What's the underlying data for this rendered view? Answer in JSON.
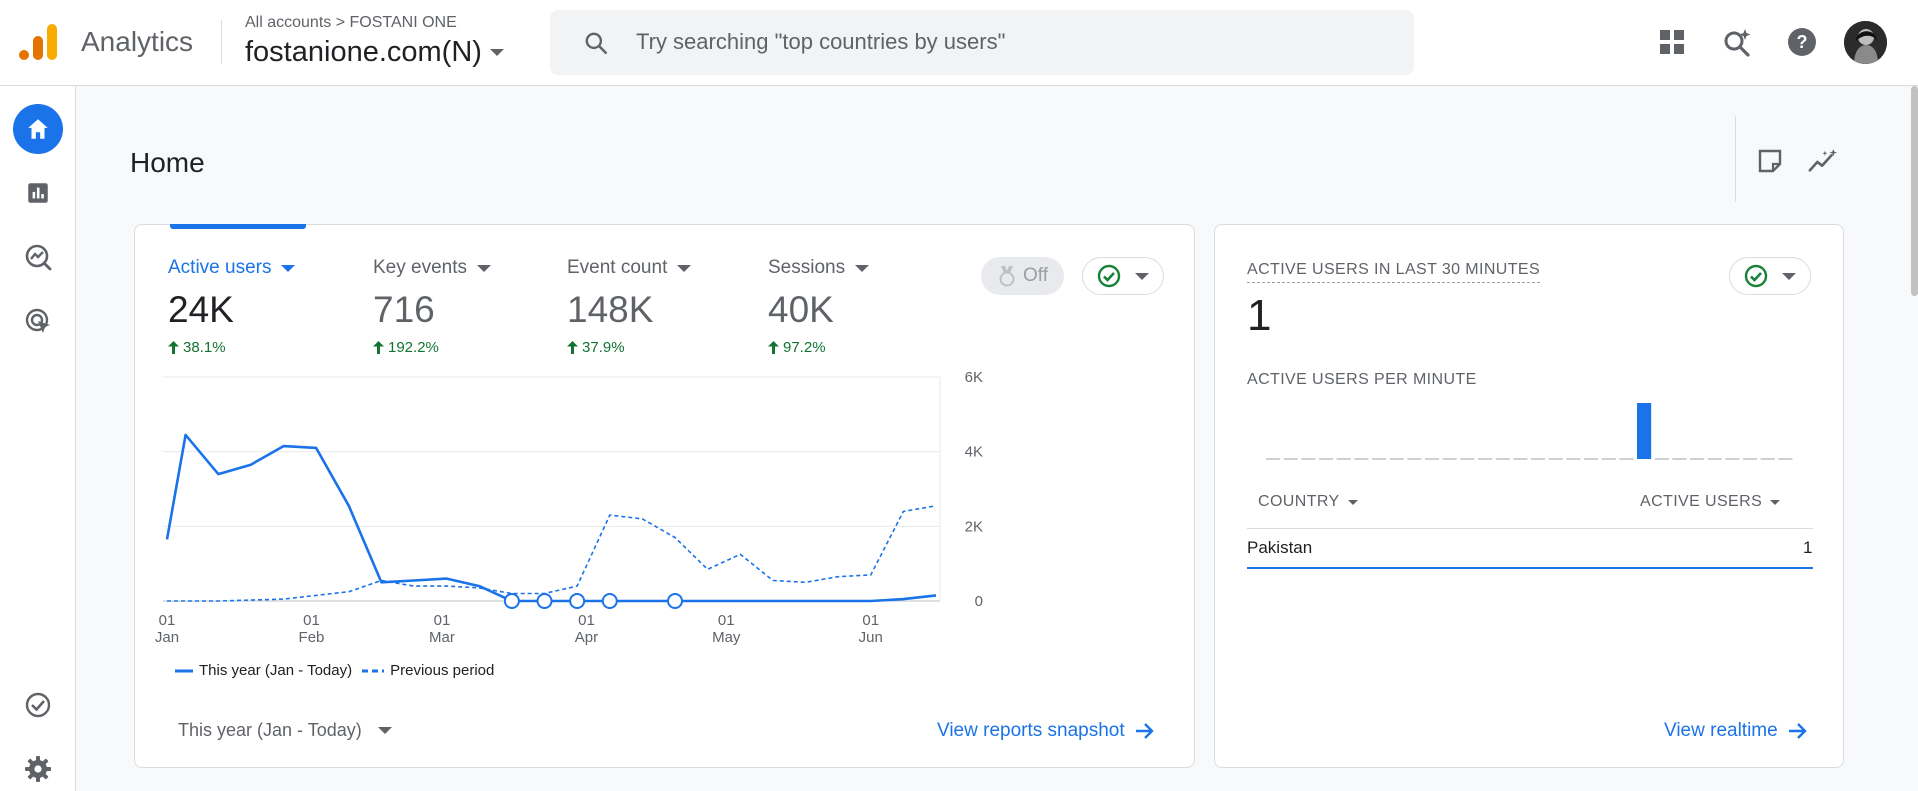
{
  "app": {
    "name": "Analytics"
  },
  "breadcrumb": {
    "all_accounts": "All accounts",
    "separator": ">",
    "account": "FOSTANI ONE"
  },
  "property": {
    "name": "fostanione.com(N)"
  },
  "search": {
    "placeholder": "Try searching \"top countries by users\""
  },
  "topbar_icons": [
    "apps-icon",
    "search-insights-icon",
    "help-icon",
    "account-avatar"
  ],
  "nav": {
    "items": [
      "home-icon",
      "reports-icon",
      "explore-icon",
      "advertising-icon"
    ],
    "bottom": [
      "admin-check-icon",
      "settings-icon"
    ]
  },
  "header": {
    "title": "Home"
  },
  "metrics": [
    {
      "label": "Active users",
      "value": "24K",
      "change": "38.1%"
    },
    {
      "label": "Key events",
      "value": "716",
      "change": "192.2%"
    },
    {
      "label": "Event count",
      "value": "148K",
      "change": "37.9%"
    },
    {
      "label": "Sessions",
      "value": "40K",
      "change": "97.2%"
    }
  ],
  "insights_toggle": {
    "label": "Off"
  },
  "chart_data": {
    "type": "line",
    "title": "",
    "x_tick_labels": [
      {
        "day": "01",
        "month": "Jan"
      },
      {
        "day": "01",
        "month": "Feb"
      },
      {
        "day": "01",
        "month": "Mar"
      },
      {
        "day": "01",
        "month": "Apr"
      },
      {
        "day": "01",
        "month": "May"
      },
      {
        "day": "01",
        "month": "Jun"
      }
    ],
    "y_tick_labels": [
      "6K",
      "4K",
      "2K",
      "0"
    ],
    "ylim": [
      0,
      6000
    ],
    "grid": true,
    "legend_position": "bottom-left",
    "series": [
      {
        "name": "This year (Jan - Today)",
        "style": "solid",
        "color": "#1a73e8",
        "points": [
          [
            "2025-01-01",
            1650
          ],
          [
            "2025-01-05",
            4450
          ],
          [
            "2025-01-12",
            3400
          ],
          [
            "2025-01-19",
            3650
          ],
          [
            "2025-01-26",
            4150
          ],
          [
            "2025-02-02",
            4100
          ],
          [
            "2025-02-09",
            2550
          ],
          [
            "2025-02-16",
            500
          ],
          [
            "2025-02-23",
            550
          ],
          [
            "2025-03-02",
            600
          ],
          [
            "2025-03-09",
            400
          ],
          [
            "2025-03-16",
            0
          ],
          [
            "2025-03-23",
            0
          ],
          [
            "2025-03-30",
            0
          ],
          [
            "2025-04-06",
            0
          ],
          [
            "2025-04-13",
            0
          ],
          [
            "2025-04-20",
            0
          ],
          [
            "2025-04-27",
            0
          ],
          [
            "2025-05-04",
            0
          ],
          [
            "2025-05-11",
            0
          ],
          [
            "2025-05-18",
            0
          ],
          [
            "2025-05-25",
            0
          ],
          [
            "2025-06-01",
            0
          ],
          [
            "2025-06-08",
            50
          ],
          [
            "2025-06-15",
            150
          ]
        ],
        "markers": [
          "2025-03-16",
          "2025-03-23",
          "2025-03-30",
          "2025-04-06",
          "2025-04-20"
        ]
      },
      {
        "name": "Previous period",
        "style": "dashed",
        "color": "#1a73e8",
        "points": [
          [
            "2025-01-01",
            0
          ],
          [
            "2025-01-12",
            0
          ],
          [
            "2025-01-26",
            50
          ],
          [
            "2025-02-02",
            150
          ],
          [
            "2025-02-09",
            250
          ],
          [
            "2025-02-16",
            550
          ],
          [
            "2025-02-23",
            400
          ],
          [
            "2025-03-02",
            400
          ],
          [
            "2025-03-09",
            350
          ],
          [
            "2025-03-16",
            200
          ],
          [
            "2025-03-23",
            200
          ],
          [
            "2025-03-30",
            400
          ],
          [
            "2025-04-06",
            2300
          ],
          [
            "2025-04-13",
            2200
          ],
          [
            "2025-04-20",
            1700
          ],
          [
            "2025-04-27",
            850
          ],
          [
            "2025-05-04",
            1250
          ],
          [
            "2025-05-11",
            550
          ],
          [
            "2025-05-18",
            500
          ],
          [
            "2025-05-25",
            650
          ],
          [
            "2025-06-01",
            700
          ],
          [
            "2025-06-08",
            2400
          ],
          [
            "2025-06-15",
            2550
          ]
        ]
      }
    ]
  },
  "legend": {
    "this_year": "This year (Jan - Today)",
    "previous": "Previous period"
  },
  "date_range": {
    "label": "This year (Jan - Today)"
  },
  "links": {
    "snapshot": "View reports snapshot",
    "realtime": "View realtime"
  },
  "realtime": {
    "title": "ACTIVE USERS IN LAST 30 MINUTES",
    "value": "1",
    "per_minute_title": "ACTIVE USERS PER MINUTE",
    "per_minute_values": [
      0,
      0,
      0,
      0,
      0,
      0,
      0,
      0,
      0,
      0,
      0,
      0,
      0,
      0,
      0,
      0,
      0,
      0,
      0,
      0,
      0,
      1,
      0,
      0,
      0,
      0,
      0,
      0,
      0,
      0
    ],
    "table": {
      "columns": [
        "COUNTRY",
        "ACTIVE USERS"
      ],
      "rows": [
        {
          "country": "Pakistan",
          "users": "1"
        }
      ]
    }
  },
  "colors": {
    "accent": "#1a73e8",
    "positive": "#137333",
    "check": "#188038",
    "logo_orange": "#f9ab00",
    "logo_dark": "#e37400"
  }
}
